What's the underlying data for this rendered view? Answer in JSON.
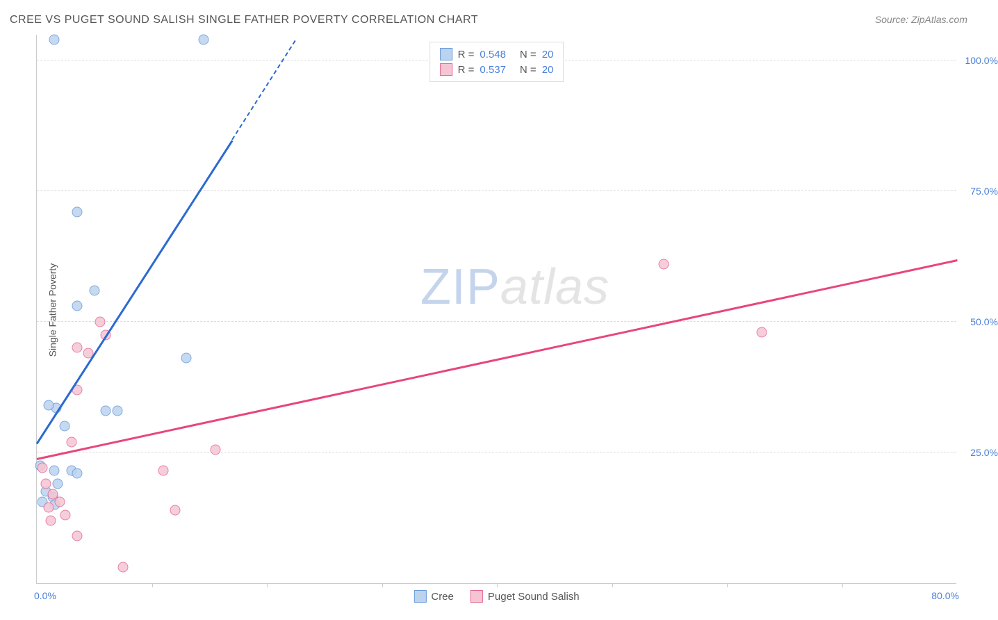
{
  "title": "CREE VS PUGET SOUND SALISH SINGLE FATHER POVERTY CORRELATION CHART",
  "source": "Source: ZipAtlas.com",
  "ylabel": "Single Father Poverty",
  "watermark": {
    "part1": "ZIP",
    "part2": "atlas"
  },
  "chart": {
    "type": "scatter",
    "xlim": [
      0,
      80
    ],
    "ylim": [
      0,
      105
    ],
    "xlim_labels": {
      "min": "0.0%",
      "max": "80.0%"
    },
    "ytick_values": [
      25,
      50,
      75,
      100
    ],
    "ytick_labels": [
      "25.0%",
      "50.0%",
      "75.0%",
      "100.0%"
    ],
    "xtick_values": [
      10,
      20,
      30,
      40,
      50,
      60,
      70
    ],
    "background_color": "#ffffff",
    "grid_color": "#dddddd",
    "axis_color": "#cccccc",
    "tick_label_color": "#4a7fd8",
    "point_radius": 7.5,
    "series": [
      {
        "name": "Cree",
        "fill": "#bcd3ef",
        "stroke": "#6a9bd8",
        "trend_color": "#2b6ad0",
        "R": "0.548",
        "N": "20",
        "trend": {
          "x1": 0,
          "y1": 27,
          "x2": 17,
          "y2": 85
        },
        "trend_dash": {
          "x1": 17,
          "y1": 85,
          "x2": 22.5,
          "y2": 104
        },
        "points": [
          {
            "x": 1.5,
            "y": 104
          },
          {
            "x": 14.5,
            "y": 104
          },
          {
            "x": 3.5,
            "y": 71
          },
          {
            "x": 5.0,
            "y": 56
          },
          {
            "x": 3.5,
            "y": 53
          },
          {
            "x": 13.0,
            "y": 43
          },
          {
            "x": 1.7,
            "y": 33.5
          },
          {
            "x": 1.0,
            "y": 34
          },
          {
            "x": 6.0,
            "y": 33
          },
          {
            "x": 7.0,
            "y": 33
          },
          {
            "x": 2.4,
            "y": 30
          },
          {
            "x": 0.3,
            "y": 22.5
          },
          {
            "x": 1.5,
            "y": 21.5
          },
          {
            "x": 3.0,
            "y": 21.5
          },
          {
            "x": 3.5,
            "y": 21
          },
          {
            "x": 1.8,
            "y": 19
          },
          {
            "x": 0.8,
            "y": 17.5
          },
          {
            "x": 0.5,
            "y": 15.5
          },
          {
            "x": 1.4,
            "y": 16.5
          },
          {
            "x": 1.6,
            "y": 15
          }
        ]
      },
      {
        "name": "Puget Sound Salish",
        "fill": "#f5c5d4",
        "stroke": "#e46a92",
        "trend_color": "#e8467a",
        "R": "0.537",
        "N": "20",
        "trend": {
          "x1": 0,
          "y1": 24,
          "x2": 80,
          "y2": 62
        },
        "points": [
          {
            "x": 54.5,
            "y": 61
          },
          {
            "x": 63.0,
            "y": 48
          },
          {
            "x": 5.5,
            "y": 50
          },
          {
            "x": 6.0,
            "y": 47.5
          },
          {
            "x": 3.5,
            "y": 45
          },
          {
            "x": 4.5,
            "y": 44
          },
          {
            "x": 3.5,
            "y": 37
          },
          {
            "x": 3.0,
            "y": 27
          },
          {
            "x": 15.5,
            "y": 25.5
          },
          {
            "x": 0.5,
            "y": 22
          },
          {
            "x": 11.0,
            "y": 21.5
          },
          {
            "x": 1.4,
            "y": 17
          },
          {
            "x": 2.0,
            "y": 15.5
          },
          {
            "x": 1.0,
            "y": 14.5
          },
          {
            "x": 12.0,
            "y": 14
          },
          {
            "x": 2.5,
            "y": 13
          },
          {
            "x": 1.2,
            "y": 12
          },
          {
            "x": 3.5,
            "y": 9
          },
          {
            "x": 7.5,
            "y": 3
          },
          {
            "x": 0.8,
            "y": 19
          }
        ]
      }
    ]
  },
  "legend_top": {
    "rows": [
      {
        "swatch_fill": "#bcd3ef",
        "swatch_stroke": "#6a9bd8",
        "r_label": "R =",
        "r_value": "0.548",
        "n_label": "N =",
        "n_value": "20"
      },
      {
        "swatch_fill": "#f5c5d4",
        "swatch_stroke": "#e46a92",
        "r_label": "R =",
        "r_value": "0.537",
        "n_label": "N =",
        "n_value": "20"
      }
    ]
  },
  "legend_bottom": {
    "items": [
      {
        "swatch_fill": "#bcd3ef",
        "swatch_stroke": "#6a9bd8",
        "label": "Cree"
      },
      {
        "swatch_fill": "#f5c5d4",
        "swatch_stroke": "#e46a92",
        "label": "Puget Sound Salish"
      }
    ]
  }
}
